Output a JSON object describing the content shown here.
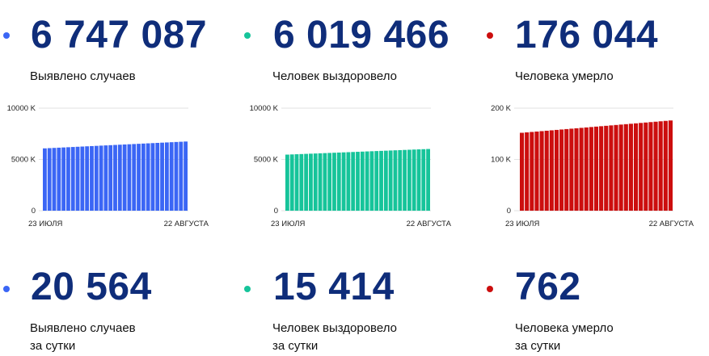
{
  "colors": {
    "cases": "#3b66f5",
    "recovered": "#16c49a",
    "deaths": "#cc0e0e",
    "big_number": "#0f2d7a"
  },
  "top": [
    {
      "value": "6 747 087",
      "label": "Выявлено случаев"
    },
    {
      "value": "6 019 466",
      "label": "Человек выздоровело"
    },
    {
      "value": "176 044",
      "label": "Человека умерло"
    }
  ],
  "bottom": [
    {
      "value": "20 564",
      "label_line1": "Выявлено случаев",
      "label_line2": "за сутки"
    },
    {
      "value": "15 414",
      "label_line1": "Человек выздоровело",
      "label_line2": "за сутки"
    },
    {
      "value": "762",
      "label_line1": "Человека умерло",
      "label_line2": "за сутки"
    }
  ],
  "chart_data": [
    {
      "type": "bar",
      "x_start_label": "23 ИЮЛЯ",
      "x_end_label": "22 АВГУСТА",
      "ytick_labels": [
        "10000 K",
        "5000 K",
        "0"
      ],
      "ylim": [
        0,
        10000
      ],
      "unit": "K",
      "bar_count": 31,
      "values_start": 6080,
      "values_end": 6747,
      "color": "#3b66f5"
    },
    {
      "type": "bar",
      "x_start_label": "23 ИЮЛЯ",
      "x_end_label": "22 АВГУСТА",
      "ytick_labels": [
        "10000 K",
        "5000 K",
        "0"
      ],
      "ylim": [
        0,
        10000
      ],
      "unit": "K",
      "bar_count": 31,
      "values_start": 5470,
      "values_end": 6019,
      "color": "#16c49a"
    },
    {
      "type": "bar",
      "x_start_label": "23 ИЮЛЯ",
      "x_end_label": "22 АВГУСТА",
      "ytick_labels": [
        "200 K",
        "100 K",
        "0"
      ],
      "ylim": [
        0,
        200
      ],
      "unit": "K",
      "bar_count": 31,
      "values_start": 152,
      "values_end": 176,
      "color": "#cc0e0e"
    }
  ]
}
